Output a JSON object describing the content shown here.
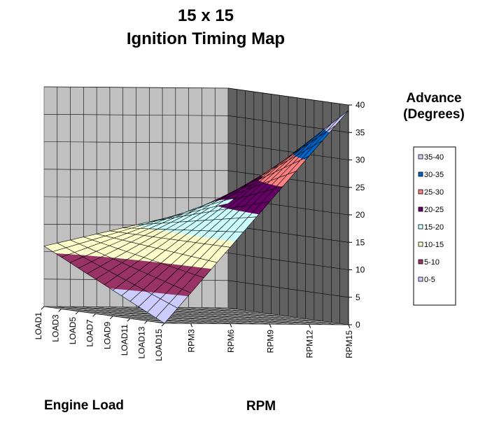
{
  "chart_data": {
    "type": "surface",
    "title_lines": [
      "15 x 15",
      "Ignition Timing Map"
    ],
    "xlabel": "Engine Load",
    "ylabel": "RPM",
    "zlabel_lines": [
      "Advance",
      "(Degrees)"
    ],
    "load_tick_labels": [
      "LOAD1",
      "LOAD3",
      "LOAD5",
      "LOAD7",
      "LOAD9",
      "LOAD11",
      "LOAD13",
      "LOAD15"
    ],
    "rpm_tick_labels": [
      "RPM3",
      "RPM6",
      "RPM9",
      "RPM12",
      "RPM15"
    ],
    "zlim": [
      0,
      40
    ],
    "z_ticks": [
      "0",
      "5",
      "10",
      "15",
      "20",
      "25",
      "30",
      "35",
      "40"
    ],
    "grid": true,
    "legend_position": "right",
    "bands": [
      {
        "label": "35-40",
        "color": "#ccccff"
      },
      {
        "label": "30-35",
        "color": "#0066cc"
      },
      {
        "label": "25-30",
        "color": "#ff8080"
      },
      {
        "label": "20-25",
        "color": "#660066"
      },
      {
        "label": "15-20",
        "color": "#ccffff"
      },
      {
        "label": "10-15",
        "color": "#ffffcc"
      },
      {
        "label": "5-10",
        "color": "#993366"
      },
      {
        "label": "0-5",
        "color": "#ccccff"
      }
    ],
    "surface_model": {
      "note_rows": "rows = LOAD1..LOAD15, cols = RPM1..RPM15, values in degrees",
      "corner_load1_rpm1": 11,
      "corner_load15_rpm1": 0,
      "corner_load1_rpm15": 19,
      "corner_load15_rpm15": 39
    }
  }
}
